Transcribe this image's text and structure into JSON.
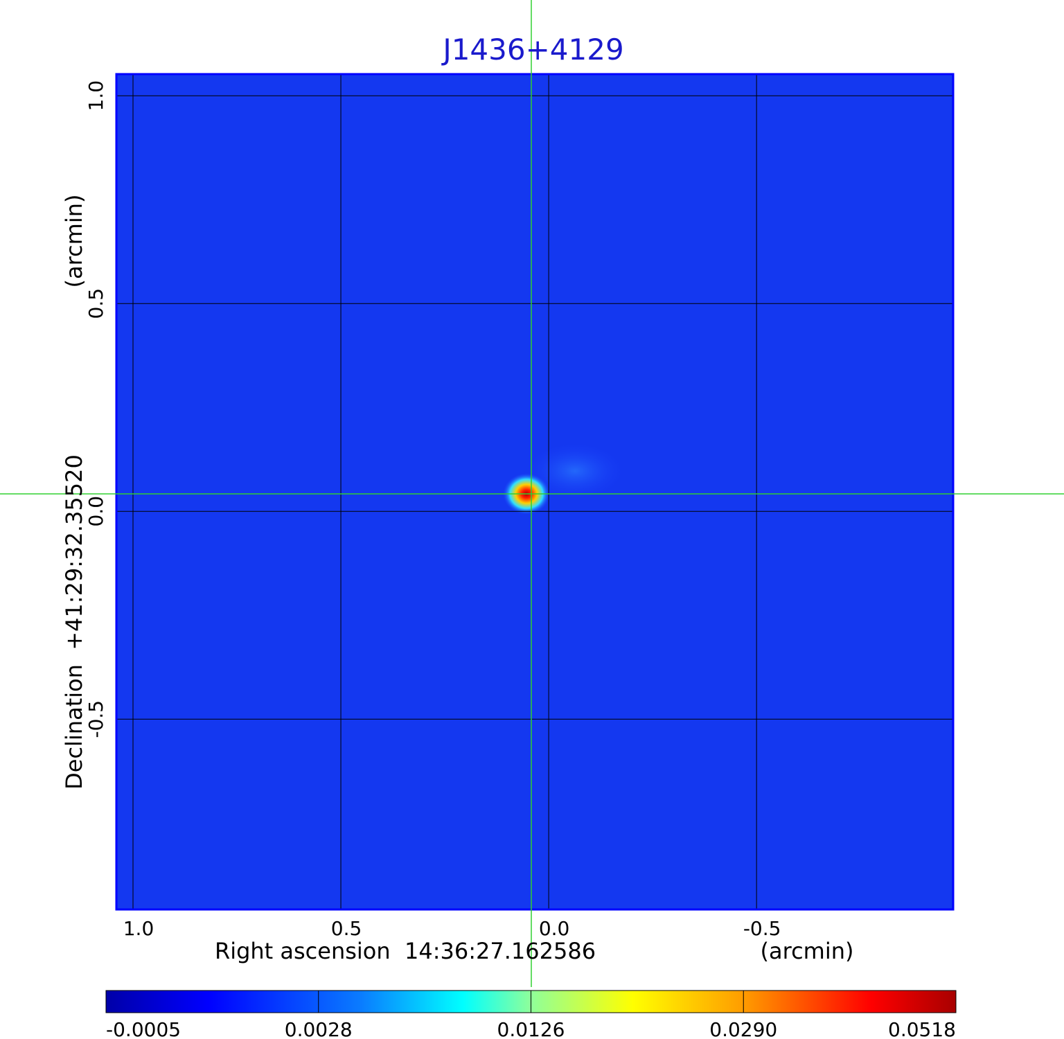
{
  "chart_data": {
    "type": "image",
    "title": "J1436+4129",
    "x_label": "Right ascension  14:36:27.162586",
    "x_unit": "(arcmin)",
    "y_label": "Declination  +41:29:32.35520",
    "y_unit": "(arcmin)",
    "xlim": [
      1.04,
      -0.973
    ],
    "ylim": [
      -0.958,
      1.052
    ],
    "xticks": [
      {
        "value": 1,
        "label": "1.0"
      },
      0.5,
      {
        "value": 0,
        "label": "0.0"
      },
      -0.5
    ],
    "yticks": [
      {
        "value": 1,
        "label": "1.0"
      },
      0.5,
      {
        "value": 0,
        "label": "0.0"
      },
      -0.5
    ],
    "grid": true,
    "colorbar": {
      "ticks": [
        -0.0005,
        0.0028,
        0.0126,
        {
          "value": 0.029,
          "label": "0.0290"
        },
        0.0518
      ]
    }
  }
}
